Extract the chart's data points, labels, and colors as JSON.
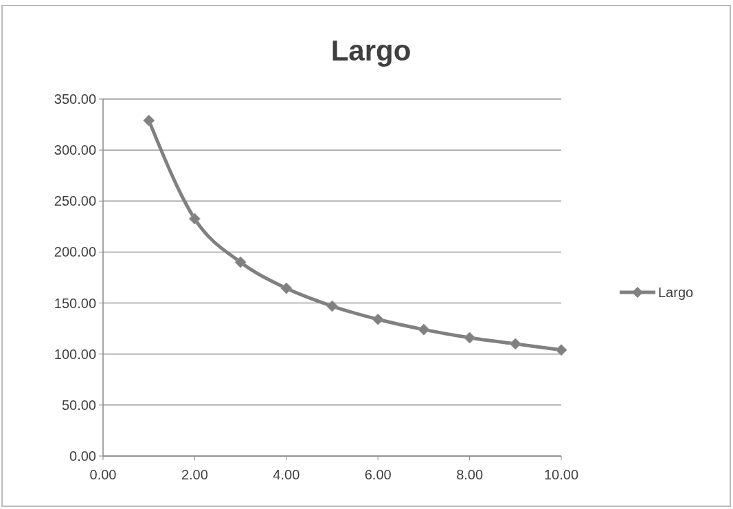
{
  "chart_data": {
    "type": "line",
    "title": "Largo",
    "x": [
      1,
      2,
      3,
      4,
      5,
      6,
      7,
      8,
      9,
      10
    ],
    "series": [
      {
        "name": "Largo",
        "color": "#808080",
        "values": [
          329,
          232.6,
          190,
          164.5,
          147,
          134,
          124,
          116,
          110,
          104
        ]
      }
    ],
    "xlim": [
      0,
      10
    ],
    "xticks": [
      {
        "value": 0,
        "label": "0.00"
      },
      {
        "value": 2,
        "label": "2.00"
      },
      {
        "value": 4,
        "label": "4.00"
      },
      {
        "value": 6,
        "label": "6.00"
      },
      {
        "value": 8,
        "label": "8.00"
      },
      {
        "value": 10,
        "label": "10.00"
      }
    ],
    "ylim": [
      0,
      350
    ],
    "yticks": [
      {
        "value": 0,
        "label": "0.00"
      },
      {
        "value": 50,
        "label": "50.00"
      },
      {
        "value": 100,
        "label": "100.00"
      },
      {
        "value": 150,
        "label": "150.00"
      },
      {
        "value": 200,
        "label": "200.00"
      },
      {
        "value": 250,
        "label": "250.00"
      },
      {
        "value": 300,
        "label": "300.00"
      },
      {
        "value": 350,
        "label": "350.00"
      }
    ],
    "grid": "y",
    "legend": "right",
    "marker": "diamond",
    "line_style": "solid"
  }
}
